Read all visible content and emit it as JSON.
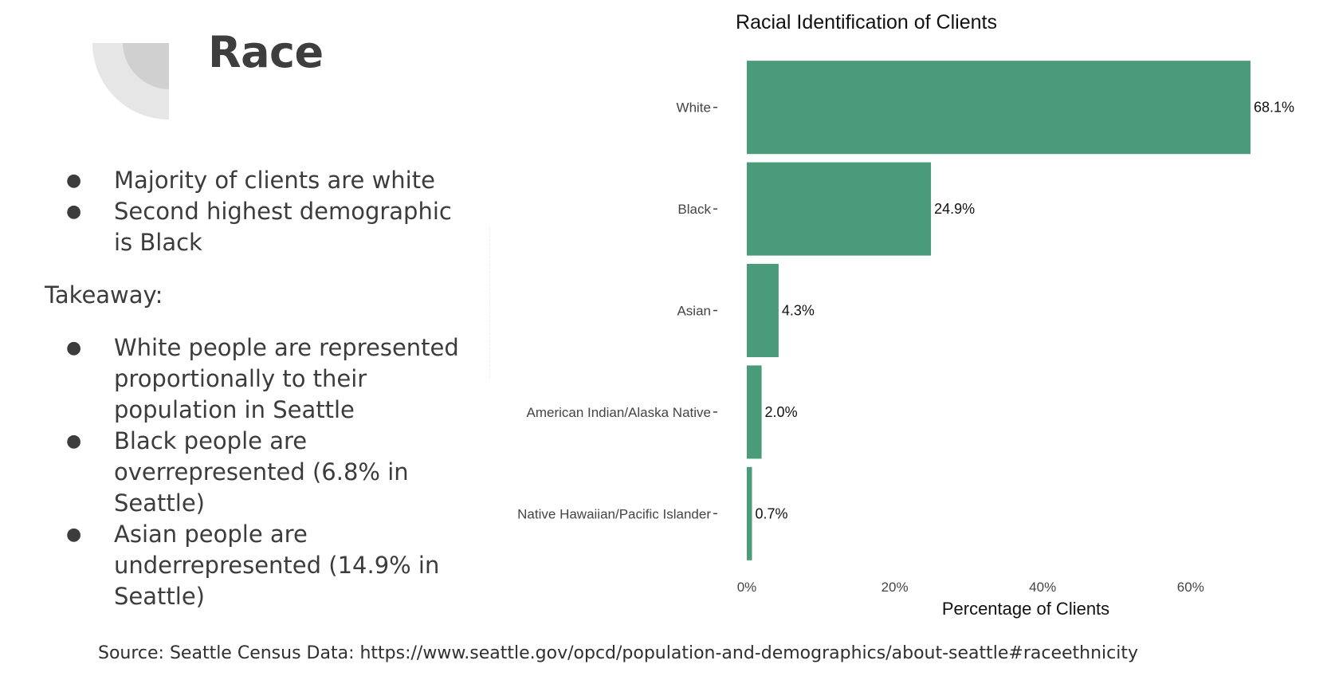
{
  "slide": {
    "title": "Race",
    "bullets_top": [
      "Majority of clients are white",
      "Second highest demographic is Black"
    ],
    "takeaway_label": "Takeaway:",
    "bullets_bottom": [
      "White people are represented proportionally to their population in Seattle",
      "Black people are overrepresented (6.8% in Seattle)",
      "Asian people are underrepresented (14.9% in Seattle)"
    ],
    "bullet_glyph": "●",
    "source": "Source: Seattle Census Data: https://www.seattle.gov/opcd/population-and-demographics/about-seattle#raceethnicity"
  },
  "chart_data": {
    "type": "bar",
    "orientation": "horizontal",
    "title": "Racial Identification of Clients",
    "xlabel": "Percentage of Clients",
    "ylabel": "",
    "categories": [
      "White",
      "Black",
      "Asian",
      "American Indian/Alaska Native",
      "Native Hawaiian/Pacific Islander"
    ],
    "values": [
      68.1,
      24.9,
      4.3,
      2.0,
      0.7
    ],
    "data_labels": [
      "68.1%",
      "24.9%",
      "4.3%",
      "2.0%",
      "0.7%"
    ],
    "xticks": [
      0,
      20,
      40,
      60
    ],
    "xtick_labels": [
      "0%",
      "20%",
      "40%",
      "60%"
    ],
    "xlim": [
      0,
      72
    ],
    "grid": false,
    "legend": "none",
    "bar_color": "#4a9b7a"
  }
}
